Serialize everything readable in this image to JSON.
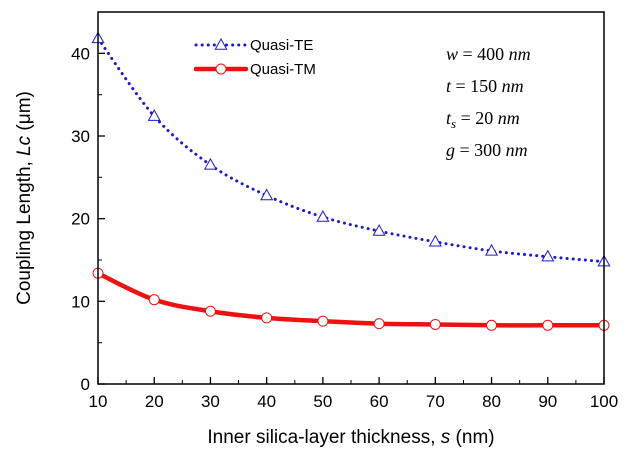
{
  "chart_data": {
    "type": "line",
    "title": "",
    "xlabel": "Inner silica-layer thickness, s (nm)",
    "xlabel_parts": {
      "before": "Inner silica-layer thickness, ",
      "var": "s",
      "after": " (nm)"
    },
    "ylabel": "Coupling Length, Lc (μm)",
    "ylabel_parts": {
      "before": "Coupling Length, ",
      "var": "Lc",
      "after": " (μm)"
    },
    "xlim": [
      10,
      100
    ],
    "ylim": [
      0,
      45
    ],
    "xticks": [
      10,
      20,
      30,
      40,
      50,
      60,
      70,
      80,
      90,
      100
    ],
    "yticks": [
      0,
      10,
      20,
      30,
      40
    ],
    "grid": false,
    "legend_position": "top-left",
    "x": [
      10,
      20,
      30,
      40,
      50,
      60,
      70,
      80,
      90,
      100
    ],
    "series": [
      {
        "name": "Quasi-TE",
        "color": "#1a1acc",
        "style": "dotted",
        "marker": "triangle",
        "values": [
          41.8,
          32.4,
          26.5,
          22.8,
          20.2,
          18.5,
          17.2,
          16.1,
          15.4,
          14.8
        ]
      },
      {
        "name": "Quasi-TM",
        "color": "#ee1111",
        "style": "solid",
        "marker": "circle",
        "values": [
          13.4,
          10.2,
          8.8,
          8.0,
          7.6,
          7.3,
          7.2,
          7.1,
          7.1,
          7.1
        ]
      }
    ],
    "annotations": [
      {
        "var": "w",
        "sub": "",
        "text": " = 400 ",
        "unit": "nm"
      },
      {
        "var": "t",
        "sub": "",
        "text": " = 150 ",
        "unit": "nm"
      },
      {
        "var": "t",
        "sub": "s",
        "text": " = 20 ",
        "unit": "nm"
      },
      {
        "var": "g",
        "sub": "",
        "text": " = 300 ",
        "unit": "nm"
      }
    ]
  }
}
